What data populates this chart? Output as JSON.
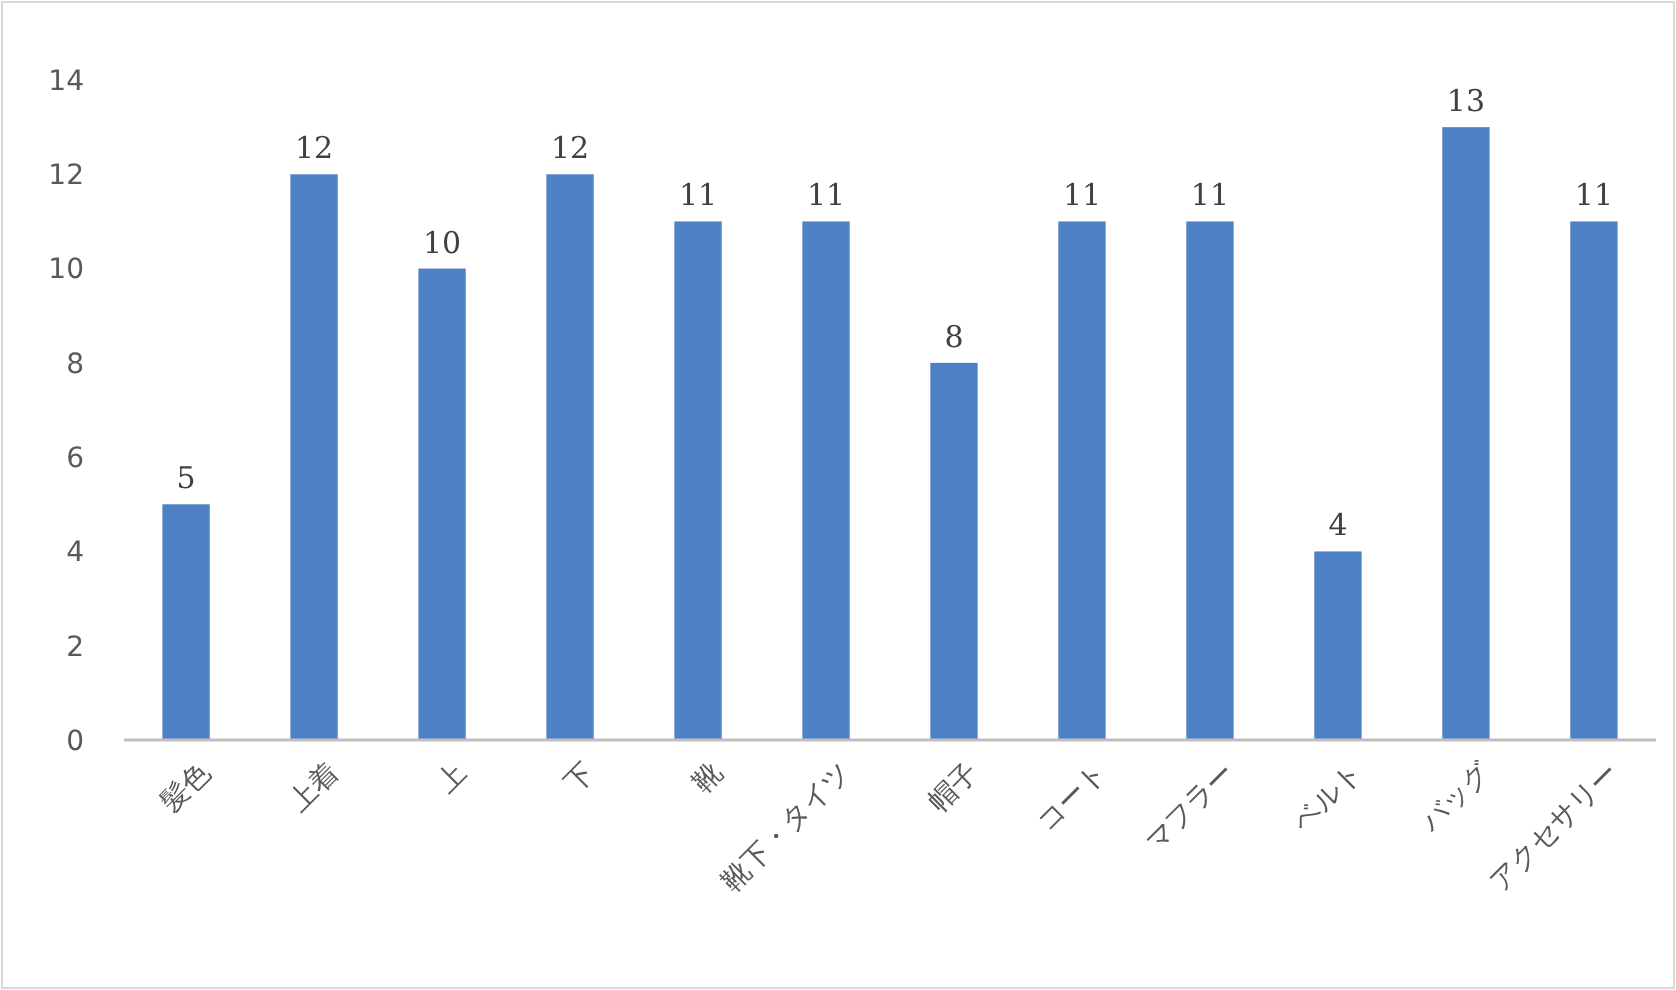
{
  "chart_data": {
    "type": "bar",
    "categories": [
      "髪色",
      "上着",
      "上",
      "下",
      "靴",
      "靴下・タイツ",
      "帽子",
      "コート",
      "マフラー",
      "ベルト",
      "バッグ",
      "アクセサリー"
    ],
    "values": [
      5,
      12,
      10,
      12,
      11,
      11,
      8,
      11,
      11,
      4,
      13,
      11
    ],
    "color": "#4f81c7",
    "ylim": [
      0,
      14
    ],
    "yticks": [
      0,
      2,
      4,
      6,
      8,
      10,
      12,
      14
    ],
    "data_labels": true,
    "grid": false
  }
}
